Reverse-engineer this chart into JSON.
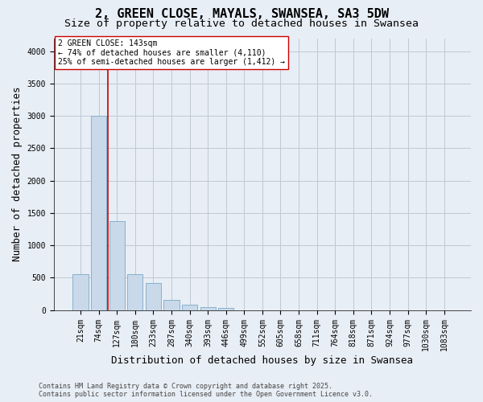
{
  "title": "2, GREEN CLOSE, MAYALS, SWANSEA, SA3 5DW",
  "subtitle": "Size of property relative to detached houses in Swansea",
  "xlabel": "Distribution of detached houses by size in Swansea",
  "ylabel": "Number of detached properties",
  "footer": "Contains HM Land Registry data © Crown copyright and database right 2025.\nContains public sector information licensed under the Open Government Licence v3.0.",
  "categories": [
    "21sqm",
    "74sqm",
    "127sqm",
    "180sqm",
    "233sqm",
    "287sqm",
    "340sqm",
    "393sqm",
    "446sqm",
    "499sqm",
    "552sqm",
    "605sqm",
    "658sqm",
    "711sqm",
    "764sqm",
    "818sqm",
    "871sqm",
    "924sqm",
    "977sqm",
    "1030sqm",
    "1083sqm"
  ],
  "values": [
    560,
    3000,
    1370,
    560,
    420,
    160,
    80,
    50,
    30,
    0,
    0,
    0,
    0,
    0,
    0,
    0,
    0,
    0,
    0,
    0,
    0
  ],
  "bar_color": "#c9d9ea",
  "bar_edge_color": "#7aaac8",
  "vline_color": "#cc0000",
  "vline_index": 2,
  "annotation_text": "2 GREEN CLOSE: 143sqm\n← 74% of detached houses are smaller (4,110)\n25% of semi-detached houses are larger (1,412) →",
  "annotation_box_facecolor": "white",
  "annotation_box_edgecolor": "#cc0000",
  "ylim": [
    0,
    4200
  ],
  "yticks": [
    0,
    500,
    1000,
    1500,
    2000,
    2500,
    3000,
    3500,
    4000
  ],
  "bg_color": "#e8eef5",
  "plot_bg_color": "#e8eef5",
  "grid_color": "#c0c8d4",
  "title_fontsize": 11,
  "subtitle_fontsize": 9.5,
  "axis_label_fontsize": 9,
  "tick_fontsize": 7,
  "annotation_fontsize": 7,
  "footer_fontsize": 6
}
